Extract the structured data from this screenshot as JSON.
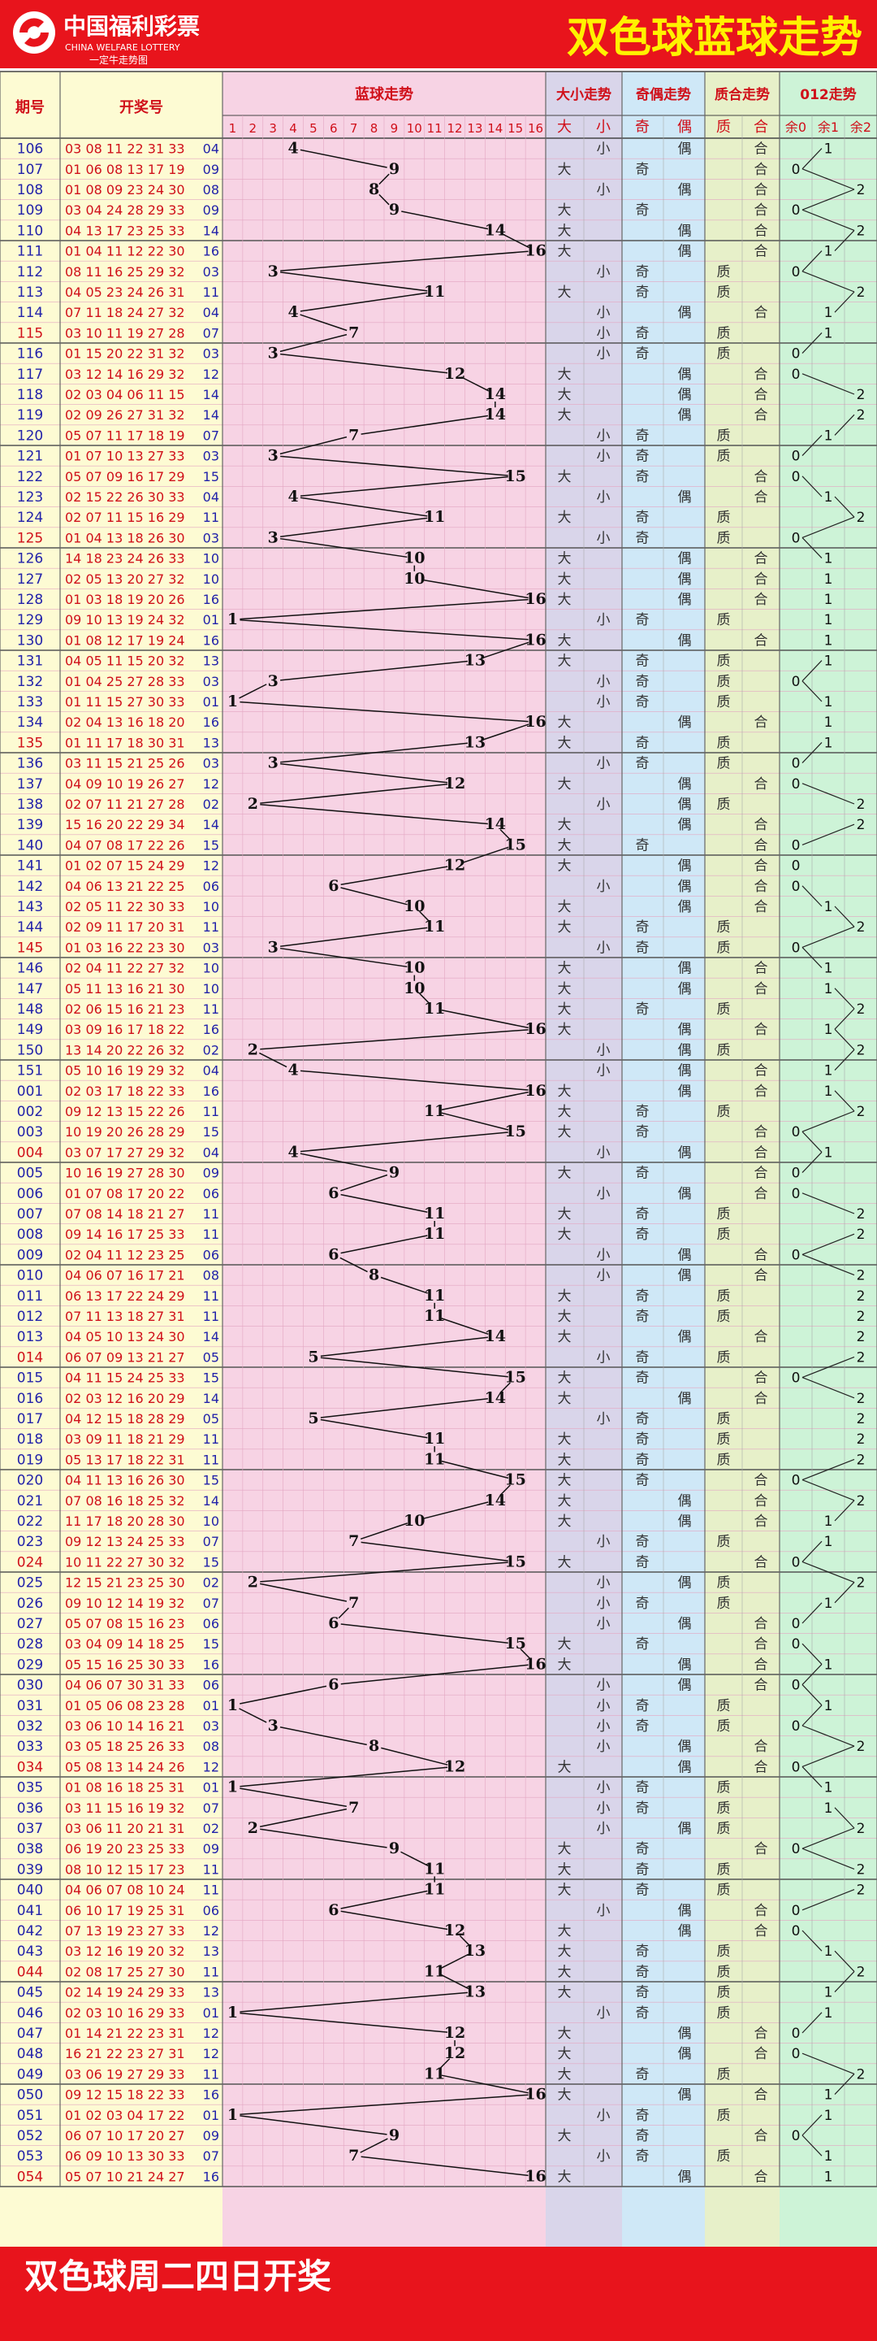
{
  "header": {
    "logo_cn": "中国福利彩票",
    "logo_en": "CHINA WELFARE LOTTERY",
    "logo_slogan": "一定牛走势图",
    "title": "双色球蓝球走势"
  },
  "columns": {
    "period": "期号",
    "numbers": "开奖号",
    "blue_trend": "蓝球走势",
    "size_trend": "大小走势",
    "parity_trend": "奇偶走势",
    "prime_trend": "质合走势",
    "mod3_trend": "012走势",
    "big": "大",
    "small": "小",
    "odd": "奇",
    "even": "偶",
    "prime": "质",
    "composite": "合",
    "r0": "余0",
    "r1": "余1",
    "r2": "余2"
  },
  "footer": {
    "text": "双色球周二四日开奖"
  },
  "colors": {
    "banner_red": "#e8141c",
    "title_yellow": "#fff200",
    "period_bg": "#fdfbd3",
    "blue_bg": "#f7d3e4",
    "size_bg": "#d9d5ea",
    "parity_bg": "#cfe8f7",
    "prime_bg": "#e7f0c9",
    "mod3_bg": "#cdf3d7",
    "text_blue": "#2222aa",
    "grid_line": "#e6a3c0"
  },
  "chart_data": {
    "type": "line",
    "blue_range": [
      1,
      16
    ],
    "rows": [
      [
        "106",
        "03 08 11 22 31 33",
        "04"
      ],
      [
        "107",
        "01 06 08 13 17 19",
        "09"
      ],
      [
        "108",
        "01 08 09 23 24 30",
        "08"
      ],
      [
        "109",
        "03 04 24 28 29 33",
        "09"
      ],
      [
        "110",
        "04 13 17 23 25 33",
        "14"
      ],
      [
        "111",
        "01 04 11 12 22 30",
        "16"
      ],
      [
        "112",
        "08 11 16 25 29 32",
        "03"
      ],
      [
        "113",
        "04 05 23 24 26 31",
        "11"
      ],
      [
        "114",
        "07 11 18 24 27 32",
        "04"
      ],
      [
        "115",
        "03 10 11 19 27 28",
        "07"
      ],
      [
        "116",
        "01 15 20 22 31 32",
        "03"
      ],
      [
        "117",
        "03 12 14 16 29 32",
        "12"
      ],
      [
        "118",
        "02 03 04 06 11 15",
        "14"
      ],
      [
        "119",
        "02 09 26 27 31 32",
        "14"
      ],
      [
        "120",
        "05 07 11 17 18 19",
        "07"
      ],
      [
        "121",
        "01 07 10 13 27 33",
        "03"
      ],
      [
        "122",
        "05 07 09 16 17 29",
        "15"
      ],
      [
        "123",
        "02 15 22 26 30 33",
        "04"
      ],
      [
        "124",
        "02 07 11 15 16 29",
        "11"
      ],
      [
        "125",
        "01 04 13 18 26 30",
        "03"
      ],
      [
        "126",
        "14 18 23 24 26 33",
        "10"
      ],
      [
        "127",
        "02 05 13 20 27 32",
        "10"
      ],
      [
        "128",
        "01 03 18 19 20 26",
        "16"
      ],
      [
        "129",
        "09 10 13 19 24 32",
        "01"
      ],
      [
        "130",
        "01 08 12 17 19 24",
        "16"
      ],
      [
        "131",
        "04 05 11 15 20 32",
        "13"
      ],
      [
        "132",
        "01 04 25 27 28 33",
        "03"
      ],
      [
        "133",
        "01 11 15 27 30 33",
        "01"
      ],
      [
        "134",
        "02 04 13 16 18 20",
        "16"
      ],
      [
        "135",
        "01 11 17 18 30 31",
        "13"
      ],
      [
        "136",
        "03 11 15 21 25 26",
        "03"
      ],
      [
        "137",
        "04 09 10 19 26 27",
        "12"
      ],
      [
        "138",
        "02 07 11 21 27 28",
        "02"
      ],
      [
        "139",
        "15 16 20 22 29 34",
        "14"
      ],
      [
        "140",
        "04 07 08 17 22 26",
        "15"
      ],
      [
        "141",
        "01 02 07 15 24 29",
        "12"
      ],
      [
        "142",
        "04 06 13 21 22 25",
        "06"
      ],
      [
        "143",
        "02 05 11 22 30 33",
        "10"
      ],
      [
        "144",
        "02 09 11 17 20 31",
        "11"
      ],
      [
        "145",
        "01 03 16 22 23 30",
        "03"
      ],
      [
        "146",
        "02 04 11 22 27 32",
        "10"
      ],
      [
        "147",
        "05 11 13 16 21 30",
        "10"
      ],
      [
        "148",
        "02 06 15 16 21 23",
        "11"
      ],
      [
        "149",
        "03 09 16 17 18 22",
        "16"
      ],
      [
        "150",
        "13 14 20 22 26 32",
        "02"
      ],
      [
        "151",
        "05 10 16 19 29 32",
        "04"
      ],
      [
        "001",
        "02 03 17 18 22 33",
        "16"
      ],
      [
        "002",
        "09 12 13 15 22 26",
        "11"
      ],
      [
        "003",
        "10 19 20 26 28 29",
        "15"
      ],
      [
        "004",
        "03 07 17 27 29 32",
        "04"
      ],
      [
        "005",
        "10 16 19 27 28 30",
        "09"
      ],
      [
        "006",
        "01 07 08 17 20 22",
        "06"
      ],
      [
        "007",
        "07 08 14 18 21 27",
        "11"
      ],
      [
        "008",
        "09 14 16 17 25 33",
        "11"
      ],
      [
        "009",
        "02 04 11 12 23 25",
        "06"
      ],
      [
        "010",
        "04 06 07 16 17 21",
        "08"
      ],
      [
        "011",
        "06 13 17 22 24 29",
        "11"
      ],
      [
        "012",
        "07 11 13 18 27 31",
        "11"
      ],
      [
        "013",
        "04 05 10 13 24 30",
        "14"
      ],
      [
        "014",
        "06 07 09 13 21 27",
        "05"
      ],
      [
        "015",
        "04 11 15 24 25 33",
        "15"
      ],
      [
        "016",
        "02 03 12 16 20 29",
        "14"
      ],
      [
        "017",
        "04 12 15 18 28 29",
        "05"
      ],
      [
        "018",
        "03 09 11 18 21 29",
        "11"
      ],
      [
        "019",
        "05 13 17 18 22 31",
        "11"
      ],
      [
        "020",
        "04 11 13 16 26 30",
        "15"
      ],
      [
        "021",
        "07 08 16 18 25 32",
        "14"
      ],
      [
        "022",
        "11 17 18 20 28 30",
        "10"
      ],
      [
        "023",
        "09 12 13 24 25 33",
        "07"
      ],
      [
        "024",
        "10 11 22 27 30 32",
        "15"
      ],
      [
        "025",
        "12 15 21 23 25 30",
        "02"
      ],
      [
        "026",
        "09 10 12 14 19 32",
        "07"
      ],
      [
        "027",
        "05 07 08 15 16 23",
        "06"
      ],
      [
        "028",
        "03 04 09 14 18 25",
        "15"
      ],
      [
        "029",
        "05 15 16 25 30 33",
        "16"
      ],
      [
        "030",
        "04 06 07 30 31 33",
        "06"
      ],
      [
        "031",
        "01 05 06 08 23 28",
        "01"
      ],
      [
        "032",
        "03 06 10 14 16 21",
        "03"
      ],
      [
        "033",
        "03 05 18 25 26 33",
        "08"
      ],
      [
        "034",
        "05 08 13 14 24 26",
        "12"
      ],
      [
        "035",
        "01 08 16 18 25 31",
        "01"
      ],
      [
        "036",
        "03 11 15 16 19 32",
        "07"
      ],
      [
        "037",
        "03 06 11 20 21 31",
        "02"
      ],
      [
        "038",
        "06 19 20 23 25 33",
        "09"
      ],
      [
        "039",
        "08 10 12 15 17 23",
        "11"
      ],
      [
        "040",
        "04 06 07 08 10 24",
        "11"
      ],
      [
        "041",
        "06 10 17 19 25 31",
        "06"
      ],
      [
        "042",
        "07 13 19 23 27 33",
        "12"
      ],
      [
        "043",
        "03 12 16 19 20 32",
        "13"
      ],
      [
        "044",
        "02 08 17 25 27 30",
        "11"
      ],
      [
        "045",
        "02 14 19 24 29 33",
        "13"
      ],
      [
        "046",
        "02 03 10 16 29 33",
        "01"
      ],
      [
        "047",
        "01 14 21 22 23 31",
        "12"
      ],
      [
        "048",
        "16 21 22 23 27 31",
        "12"
      ],
      [
        "049",
        "03 06 19 27 29 33",
        "11"
      ],
      [
        "050",
        "09 12 15 18 22 33",
        "16"
      ],
      [
        "051",
        "01 02 03 04 17 22",
        "01"
      ],
      [
        "052",
        "06 07 10 17 20 27",
        "09"
      ],
      [
        "053",
        "06 09 10 13 30 33",
        "07"
      ],
      [
        "054",
        "05 07 10 21 24 27",
        "16"
      ]
    ]
  }
}
